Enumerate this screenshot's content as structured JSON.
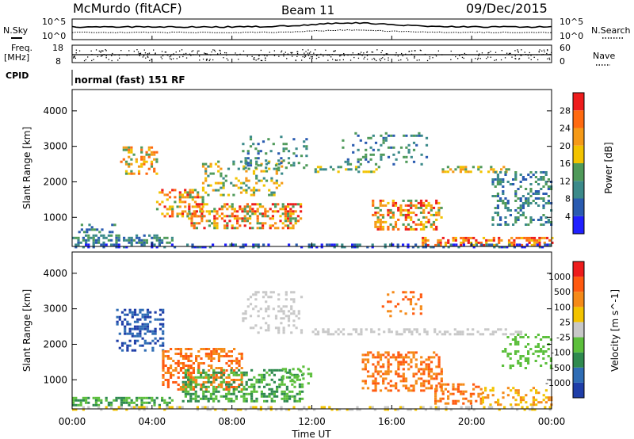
{
  "header": {
    "station": "McMurdo (fitACF)",
    "beam": "Beam 11",
    "date": "09/Dec/2015"
  },
  "top_panels": {
    "nsky_label": "N.Sky",
    "nsearch_label": "N.Search",
    "nsky_ticks": [
      "10^5",
      "10^0"
    ],
    "nsearch_ticks": [
      "10^5",
      "10^0"
    ],
    "freq_label_1": "Freq.",
    "freq_label_2": "[MHz]",
    "freq_ticks": [
      "18",
      "8"
    ],
    "nave_label": "Nave",
    "nave_ticks": [
      "60",
      "0"
    ],
    "cpid_label": "CPID",
    "cpid_text": "normal (fast) 151 RF"
  },
  "time_axis": {
    "label": "Time UT",
    "ticks": [
      "00:00",
      "04:00",
      "08:00",
      "12:00",
      "16:00",
      "20:00",
      "00:00"
    ]
  },
  "colors": {
    "power_scale": [
      "#2020ff",
      "#2a5bb0",
      "#3b8a8a",
      "#4f9a5a",
      "#f2c300",
      "#f59a18",
      "#ff6a10",
      "#ee1c1c"
    ],
    "velocity_scale": [
      "#1f3ea8",
      "#2f6db5",
      "#2f8a4f",
      "#5cbf3c",
      "#c8c8c8",
      "#f2c300",
      "#f58a18",
      "#ff5a10",
      "#ee1c1c"
    ]
  },
  "chart_data": [
    {
      "type": "heatmap",
      "quantity": "Power",
      "xlabel": "Time UT",
      "ylabel": "Slant Range [km]",
      "xlim": [
        0,
        24
      ],
      "ylim": [
        180,
        4600
      ],
      "y_ticks": [
        "1000",
        "2000",
        "3000",
        "4000"
      ],
      "colorbar": {
        "label": "Power [dB]",
        "range": [
          0,
          30
        ],
        "ticks": [
          "4",
          "8",
          "12",
          "16",
          "20",
          "24",
          "28"
        ]
      }
    },
    {
      "type": "heatmap",
      "quantity": "Velocity",
      "xlabel": "Time UT",
      "ylabel": "Slant Range [km]",
      "xlim": [
        0,
        24
      ],
      "ylim": [
        180,
        4600
      ],
      "y_ticks": [
        "1000",
        "2000",
        "3000",
        "4000"
      ],
      "colorbar": {
        "label": "Velocity [m s^-1]",
        "ticks": [
          "1000",
          "500",
          "100",
          "25",
          "-25",
          "-100",
          "-500",
          "-1000"
        ]
      }
    }
  ]
}
